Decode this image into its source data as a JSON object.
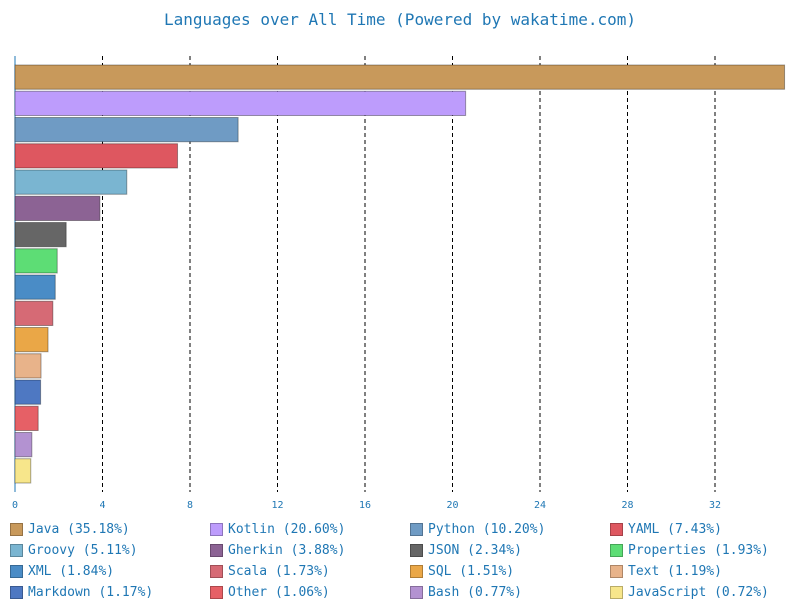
{
  "chart_data": {
    "type": "bar",
    "orientation": "horizontal",
    "title": "Languages over All Time (Powered by wakatime.com)",
    "xlabel": "",
    "ylabel": "",
    "xlim": [
      0,
      35.2
    ],
    "x_ticks": [
      "0",
      "4",
      "8",
      "12",
      "16",
      "20",
      "24",
      "28",
      "32"
    ],
    "grid": "vertical dashed",
    "legend_position": "bottom",
    "categories": [
      "Java",
      "Kotlin",
      "Python",
      "YAML",
      "Groovy",
      "Gherkin",
      "JSON",
      "Properties",
      "XML",
      "Scala",
      "SQL",
      "Text",
      "Markdown",
      "Other",
      "Bash",
      "JavaScript"
    ],
    "values": [
      35.18,
      20.6,
      10.2,
      7.43,
      5.11,
      3.88,
      2.34,
      1.93,
      1.84,
      1.73,
      1.51,
      1.19,
      1.17,
      1.06,
      0.77,
      0.72
    ],
    "colors": [
      "#c8995b",
      "#bd9cfc",
      "#6f9bc4",
      "#de5760",
      "#7ab5d1",
      "#8c6394",
      "#666666",
      "#5ddd75",
      "#4a8cc6",
      "#d66a75",
      "#eaa747",
      "#e8b38a",
      "#4e78c2",
      "#e66066",
      "#b392d1",
      "#f7e68b"
    ],
    "legend": [
      "Java (35.18%)",
      "Kotlin (20.60%)",
      "Python (10.20%)",
      "YAML (7.43%)",
      "Groovy (5.11%)",
      "Gherkin (3.88%)",
      "JSON (2.34%)",
      "Properties (1.93%)",
      "XML (1.84%)",
      "Scala (1.73%)",
      "SQL (1.51%)",
      "Text (1.19%)",
      "Markdown (1.17%)",
      "Other (1.06%)",
      "Bash (0.77%)",
      "JavaScript (0.72%)"
    ]
  }
}
